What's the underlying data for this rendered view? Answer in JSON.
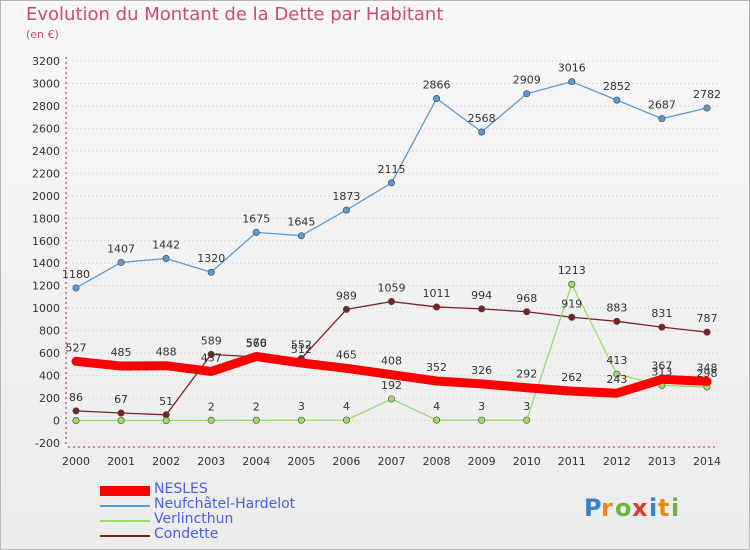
{
  "title": "Evolution du Montant de la Dette par Habitant",
  "subtitle": "(en €)",
  "logo_text": "Proxiti",
  "chart_data": {
    "type": "line",
    "x": [
      2000,
      2001,
      2002,
      2003,
      2004,
      2005,
      2006,
      2007,
      2008,
      2009,
      2010,
      2011,
      2012,
      2013,
      2014
    ],
    "ylim": [
      -200,
      3200
    ],
    "yticks": [
      -200,
      0,
      200,
      400,
      600,
      800,
      1000,
      1200,
      1400,
      1600,
      1800,
      2000,
      2200,
      2400,
      2600,
      2800,
      3000,
      3200
    ],
    "grid": "horizontal dotted",
    "legend_position": "bottom-left",
    "series": [
      {
        "name": "NESLES",
        "color": "#ff0000",
        "values": [
          527,
          485,
          488,
          437,
          570,
          512,
          465,
          408,
          352,
          326,
          292,
          262,
          243,
          367,
          348
        ]
      },
      {
        "name": "Neufchâtel-Hardelot",
        "color": "#5b9bd5",
        "values": [
          1180,
          1407,
          1442,
          1320,
          1675,
          1645,
          1873,
          2115,
          2866,
          2568,
          2909,
          3016,
          2852,
          2687,
          2782
        ]
      },
      {
        "name": "Verlincthun",
        "color": "#99dd66",
        "values": [
          0,
          0,
          0,
          2,
          2,
          3,
          4,
          192,
          4,
          3,
          3,
          1213,
          413,
          313,
          298
        ]
      },
      {
        "name": "Condette",
        "color": "#7b2323",
        "values": [
          86,
          67,
          51,
          589,
          566,
          552,
          989,
          1059,
          1011,
          994,
          968,
          919,
          883,
          831,
          787
        ]
      }
    ],
    "labels": {
      "NESLES": [
        "527",
        "485",
        "488",
        "437",
        "570",
        "512",
        "465",
        "408",
        "352",
        "326",
        "292",
        "262",
        "243",
        "367",
        "348"
      ],
      "Neufchâtel-Hardelot": [
        "1180",
        "1407",
        "1442",
        "1320",
        "1675",
        "1645",
        "1873",
        "2115",
        "2866",
        "2568",
        "2909",
        "3016",
        "2852",
        "2687",
        "2782"
      ],
      "Verlincthun": [
        "",
        "",
        "",
        "2",
        "2",
        "3",
        "4",
        "192",
        "4",
        "3",
        "3",
        "1213",
        "413",
        "313",
        "298"
      ],
      "Condette": [
        "86",
        "67",
        "51",
        "589",
        "566",
        "552",
        "989",
        "1059",
        "1011",
        "994",
        "968",
        "919",
        "883",
        "831",
        "787"
      ]
    }
  },
  "legend": [
    {
      "label": "NESLES",
      "color": "#ff0000"
    },
    {
      "label": "Neufchâtel-Hardelot",
      "color": "#5b9bd5"
    },
    {
      "label": "Verlincthun",
      "color": "#99dd66"
    },
    {
      "label": "Condette",
      "color": "#7b2323"
    }
  ]
}
